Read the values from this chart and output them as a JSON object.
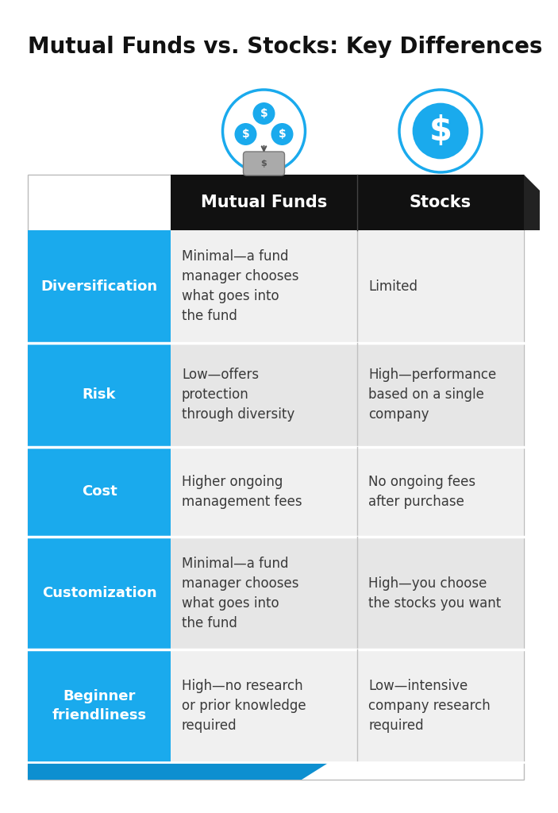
{
  "title": "Mutual Funds vs. Stocks: Key Differences",
  "col_headers": [
    "Mutual Funds",
    "Stocks"
  ],
  "rows": [
    {
      "label": "Diversification",
      "mf": "Minimal—a fund\nmanager chooses\nwhat goes into\nthe fund",
      "stocks": "Limited"
    },
    {
      "label": "Risk",
      "mf": "Low—offers\nprotection\nthrough diversity",
      "stocks": "High—performance\nbased on a single\ncompany"
    },
    {
      "label": "Cost",
      "mf": "Higher ongoing\nmanagement fees",
      "stocks": "No ongoing fees\nafter purchase"
    },
    {
      "label": "Customization",
      "mf": "Minimal—a fund\nmanager chooses\nwhat goes into\nthe fund",
      "stocks": "High—you choose\nthe stocks you want"
    },
    {
      "label": "Beginner\nfriendliness",
      "mf": "High—no research\nor prior knowledge\nrequired",
      "stocks": "Low—intensive\ncompany research\nrequired"
    }
  ],
  "blue_color": "#1aaaed",
  "dark_blue": "#0d8fd0",
  "header_bg": "#111111",
  "row_bg_even": "#f0f0f0",
  "row_bg_odd": "#e6e6e6",
  "white": "#ffffff",
  "text_dark": "#3a3a3a",
  "title_fontsize": 20,
  "header_fontsize": 15,
  "label_fontsize": 13,
  "cell_fontsize": 12,
  "fig_w": 7.03,
  "fig_h": 10.24,
  "dpi": 100
}
